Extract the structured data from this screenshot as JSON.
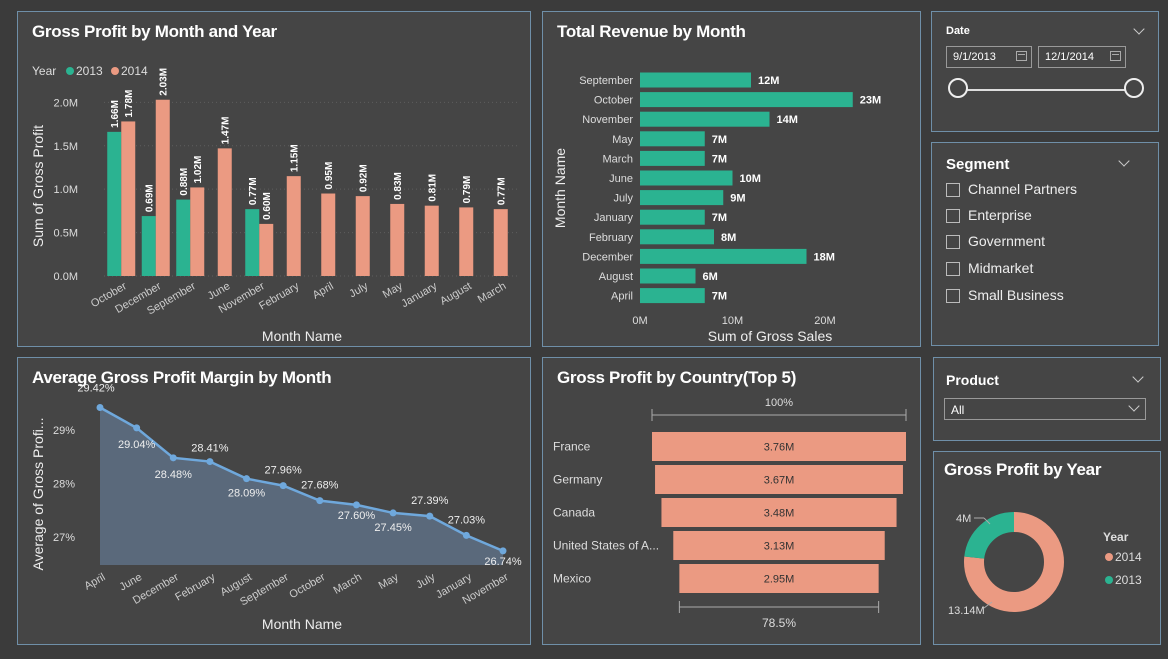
{
  "panels": {
    "gp_month_year": {
      "title": "Gross Profit by Month and Year"
    },
    "revenue_month": {
      "title": "Total Revenue by Month"
    },
    "margin_month": {
      "title": "Average Gross Profit Margin by Month"
    },
    "gp_country": {
      "title": "Gross Profit by Country(Top 5)"
    },
    "gp_year": {
      "title": "Gross Profit by Year"
    }
  },
  "date_slicer": {
    "title": "Date",
    "start": "9/1/2013",
    "end": "12/1/2014",
    "range_fraction": [
      0,
      1
    ]
  },
  "segment_slicer": {
    "title": "Segment",
    "items": [
      "Channel Partners",
      "Enterprise",
      "Government",
      "Midmarket",
      "Small Business"
    ]
  },
  "product_slicer": {
    "title": "Product",
    "selected": "All"
  },
  "colors": {
    "c2013": "#2bb391",
    "c2014": "#eb9a82",
    "line": "#6fa8dc",
    "area": "#5c6c7e",
    "bar": "#2bb391",
    "funnel": "#eb9a82"
  },
  "chart_data": [
    {
      "id": "gp_month_year",
      "type": "bar",
      "legend_title": "Year",
      "categories": [
        "October",
        "December",
        "September",
        "June",
        "November",
        "February",
        "April",
        "July",
        "May",
        "January",
        "August",
        "March"
      ],
      "series": [
        {
          "name": "2013",
          "values": [
            1.66,
            0.69,
            0.88,
            null,
            0.77,
            null,
            null,
            null,
            null,
            null,
            null,
            null
          ],
          "labels": [
            "1.66M",
            "0.69M",
            "0.88M",
            "",
            "0.77M",
            "",
            "",
            "",
            "",
            "",
            "",
            ""
          ]
        },
        {
          "name": "2014",
          "values": [
            1.78,
            2.03,
            1.02,
            1.47,
            0.6,
            1.15,
            0.95,
            0.92,
            0.83,
            0.81,
            0.79,
            0.77
          ],
          "labels": [
            "1.78M",
            "2.03M",
            "1.02M",
            "1.47M",
            "0.60M",
            "1.15M",
            "0.95M",
            "0.92M",
            "0.83M",
            "0.81M",
            "0.79M",
            "0.77M"
          ]
        }
      ],
      "yticks": [
        "0.0M",
        "0.5M",
        "1.0M",
        "1.5M",
        "2.0M"
      ],
      "ylim": [
        0,
        2.05
      ],
      "xlabel": "Month Name",
      "ylabel": "Sum of Gross Profit",
      "legend_position": "top-left"
    },
    {
      "id": "revenue_month",
      "type": "bar",
      "orientation": "horizontal",
      "categories": [
        "September",
        "October",
        "November",
        "May",
        "March",
        "June",
        "July",
        "January",
        "February",
        "December",
        "August",
        "April"
      ],
      "values": [
        12,
        23,
        14,
        7,
        7,
        10,
        9,
        7,
        8,
        18,
        6,
        7
      ],
      "labels": [
        "12M",
        "23M",
        "14M",
        "7M",
        "7M",
        "10M",
        "9M",
        "7M",
        "8M",
        "18M",
        "6M",
        "7M"
      ],
      "xticks": [
        "0M",
        "10M",
        "20M"
      ],
      "xlim": [
        0,
        25
      ],
      "xlabel": "Sum of Gross Sales",
      "ylabel": "Month Name"
    },
    {
      "id": "margin_month",
      "type": "area",
      "categories": [
        "April",
        "June",
        "December",
        "February",
        "August",
        "September",
        "October",
        "March",
        "May",
        "July",
        "January",
        "November"
      ],
      "values": [
        29.42,
        29.04,
        28.48,
        28.41,
        28.09,
        27.96,
        27.68,
        27.6,
        27.45,
        27.39,
        27.03,
        26.74
      ],
      "labels": [
        "29.42%",
        "29.04%",
        "28.48%",
        "28.41%",
        "28.09%",
        "27.96%",
        "27.68%",
        "27.60%",
        "27.45%",
        "27.39%",
        "27.03%",
        "26.74%"
      ],
      "yticks": [
        "27%",
        "28%",
        "29%"
      ],
      "ylim": [
        26.6,
        29.5
      ],
      "xlabel": "Month Name",
      "ylabel": "Average of Gross Profi..."
    },
    {
      "id": "gp_country",
      "type": "funnel",
      "categories": [
        "France",
        "Germany",
        "Canada",
        "United States of A...",
        "Mexico"
      ],
      "values": [
        3.76,
        3.67,
        3.48,
        3.13,
        2.95
      ],
      "labels": [
        "3.76M",
        "3.67M",
        "3.48M",
        "3.13M",
        "2.95M"
      ],
      "top_label": "100%",
      "bottom_label": "78.5%"
    },
    {
      "id": "gp_year",
      "type": "pie",
      "legend_title": "Year",
      "slices": [
        {
          "name": "2014",
          "value": 13.14,
          "label": "13.14M"
        },
        {
          "name": "2013",
          "value": 4,
          "label": "4M"
        }
      ],
      "legend_position": "right"
    }
  ]
}
